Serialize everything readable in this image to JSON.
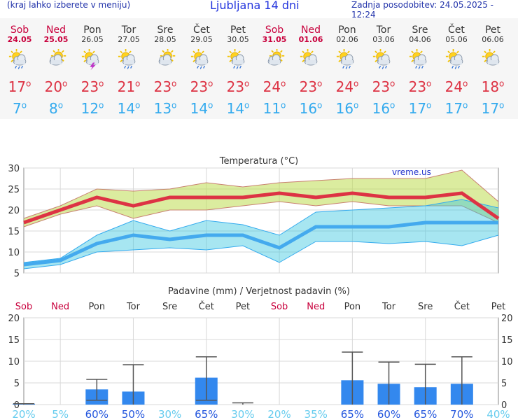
{
  "header": {
    "left_text": "(kraj lahko izberete v meniju)",
    "title": "Ljubljana 14 dni",
    "right_text": "Zadnja posodobitev: 24.05.2025 - 12:24"
  },
  "colors": {
    "weekend": "#c8003c",
    "tmax": "#dd3344",
    "tmin": "#33aaee",
    "bar": "#3388ee"
  },
  "days": [
    {
      "name": "Sob",
      "date": "24.05",
      "weekend": true,
      "icon": "sun-cloud-rain-icon",
      "tmax": "17",
      "tmin": "7"
    },
    {
      "name": "Ned",
      "date": "25.05",
      "weekend": true,
      "icon": "cloud-sun-icon",
      "tmax": "20",
      "tmin": "8"
    },
    {
      "name": "Pon",
      "date": "26.05",
      "weekend": false,
      "icon": "sun-cloud-thunder-icon",
      "tmax": "23",
      "tmin": "12"
    },
    {
      "name": "Tor",
      "date": "27.05",
      "weekend": false,
      "icon": "sun-cloud-rain-icon",
      "tmax": "21",
      "tmin": "14"
    },
    {
      "name": "Sre",
      "date": "28.05",
      "weekend": false,
      "icon": "cloud-sun-icon",
      "tmax": "23",
      "tmin": "13"
    },
    {
      "name": "Čet",
      "date": "29.05",
      "weekend": false,
      "icon": "sun-cloud-rain-icon",
      "tmax": "23",
      "tmin": "14"
    },
    {
      "name": "Pet",
      "date": "30.05",
      "weekend": false,
      "icon": "sun-cloud-rain-icon",
      "tmax": "23",
      "tmin": "14"
    },
    {
      "name": "Sob",
      "date": "31.05",
      "weekend": true,
      "icon": "cloud-sun-icon",
      "tmax": "24",
      "tmin": "11"
    },
    {
      "name": "Ned",
      "date": "01.06",
      "weekend": true,
      "icon": "sun-cloud-icon",
      "tmax": "23",
      "tmin": "16"
    },
    {
      "name": "Pon",
      "date": "02.06",
      "weekend": false,
      "icon": "sun-cloud-rain-icon",
      "tmax": "24",
      "tmin": "16"
    },
    {
      "name": "Tor",
      "date": "03.06",
      "weekend": false,
      "icon": "sun-cloud-rain-icon",
      "tmax": "23",
      "tmin": "16"
    },
    {
      "name": "Sre",
      "date": "04.06",
      "weekend": false,
      "icon": "sun-cloud-rain-icon",
      "tmax": "23",
      "tmin": "17"
    },
    {
      "name": "Čet",
      "date": "05.06",
      "weekend": false,
      "icon": "sun-cloud-rain-icon",
      "tmax": "24",
      "tmin": "17"
    },
    {
      "name": "Pet",
      "date": "06.06",
      "weekend": false,
      "icon": "sun-cloud-icon",
      "tmax": "18",
      "tmin": "17"
    }
  ],
  "chart_data": [
    {
      "type": "line",
      "title": "Temperatura (°C)",
      "watermark": "vreme.us",
      "ylim": [
        5,
        30
      ],
      "yticks": [
        5,
        10,
        15,
        20,
        25,
        30
      ],
      "grid": true,
      "x": [
        "24.05",
        "25.05",
        "26.05",
        "27.05",
        "28.05",
        "29.05",
        "30.05",
        "31.05",
        "01.06",
        "02.06",
        "03.06",
        "04.06",
        "05.06",
        "06.06"
      ],
      "series": [
        {
          "name": "tmax",
          "values": [
            17,
            20,
            23,
            21,
            23,
            23,
            23,
            24,
            23,
            24,
            23,
            23,
            24,
            18
          ]
        },
        {
          "name": "tmax_low",
          "values": [
            16,
            19,
            21,
            18,
            20,
            20,
            21,
            22,
            21,
            22,
            21,
            21,
            21,
            17
          ]
        },
        {
          "name": "tmax_high",
          "values": [
            18,
            21,
            25,
            24.5,
            25,
            26.5,
            25.5,
            26.5,
            27,
            27.5,
            27.5,
            27.5,
            29.5,
            22
          ]
        },
        {
          "name": "tmin",
          "values": [
            7,
            8,
            12,
            14,
            13,
            14,
            14,
            11,
            16,
            16,
            16,
            17,
            17,
            17
          ]
        },
        {
          "name": "tmin_low",
          "values": [
            6,
            7,
            10,
            10.5,
            11,
            10.5,
            11.5,
            7.5,
            12.5,
            12.5,
            12,
            12.5,
            11.5,
            14
          ]
        },
        {
          "name": "tmin_high",
          "values": [
            7.5,
            8.5,
            14,
            17.5,
            15,
            17.5,
            16.5,
            14,
            19.5,
            20,
            20.5,
            21,
            22.5,
            20.5
          ]
        }
      ]
    },
    {
      "type": "bar",
      "title": "Padavine (mm) / Verjetnost padavin (%)",
      "ylim": [
        0,
        20
      ],
      "yticks": [
        0,
        5,
        10,
        15,
        20
      ],
      "categories": [
        "Sob",
        "Ned",
        "Pon",
        "Tor",
        "Sre",
        "Čet",
        "Pet",
        "Sob",
        "Ned",
        "Pon",
        "Tor",
        "Sre",
        "Čet",
        "Pet"
      ],
      "weekend": [
        true,
        true,
        false,
        false,
        false,
        false,
        false,
        true,
        true,
        false,
        false,
        false,
        false,
        false
      ],
      "values": [
        0.2,
        0,
        3.5,
        3,
        0,
        6.2,
        0,
        0,
        0,
        5.6,
        4.8,
        4,
        4.8,
        0
      ],
      "error_low": [
        0,
        0,
        1,
        0,
        0,
        1,
        0,
        0,
        0,
        0,
        0,
        0,
        0,
        0
      ],
      "error_high": [
        0.2,
        0,
        5.8,
        9.2,
        0,
        11,
        0.4,
        0,
        0,
        12.1,
        9.8,
        9.3,
        11,
        0
      ],
      "probability": [
        "20%",
        "5%",
        "60%",
        "50%",
        "30%",
        "65%",
        "30%",
        "20%",
        "35%",
        "65%",
        "60%",
        "65%",
        "70%",
        "40%"
      ]
    }
  ]
}
